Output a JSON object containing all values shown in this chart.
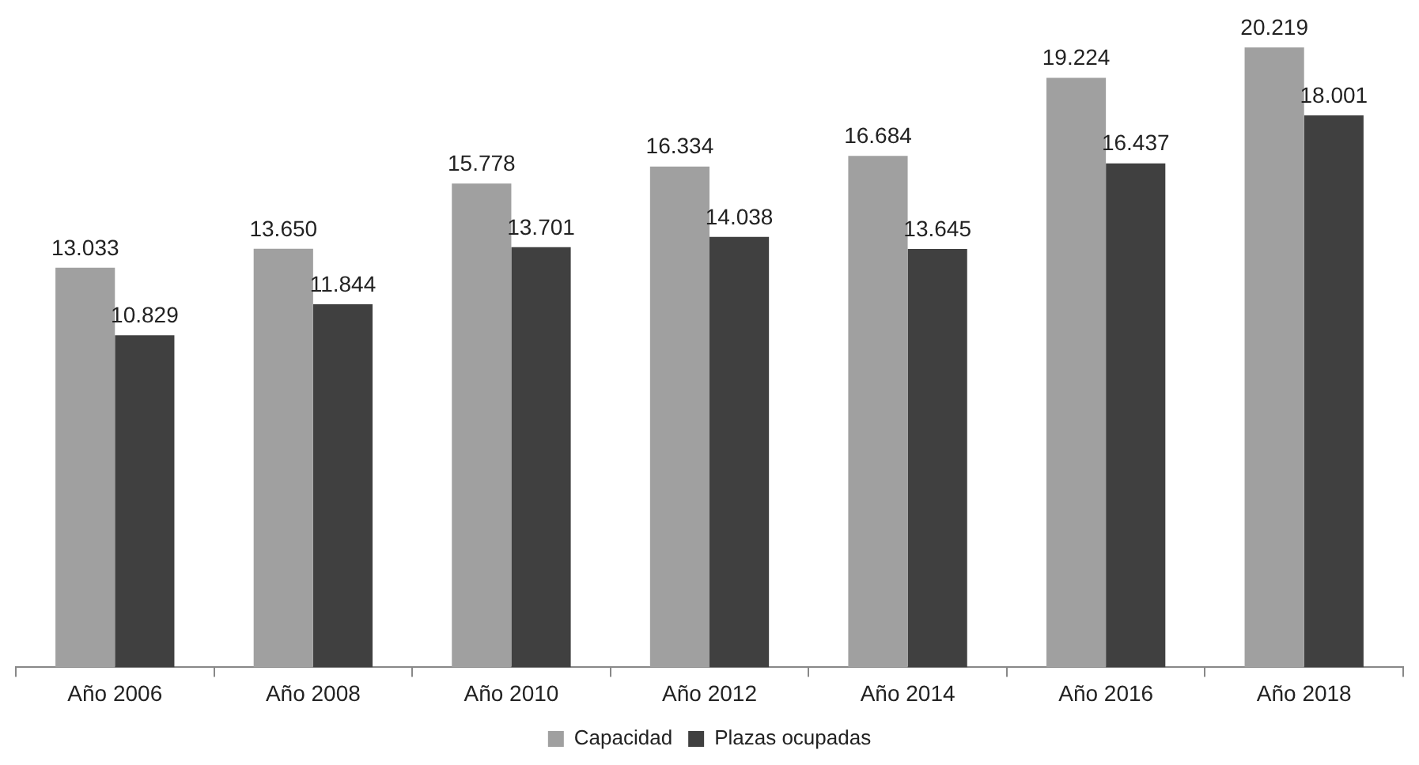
{
  "chart_data": {
    "type": "bar",
    "categories": [
      "Año 2006",
      "Año 2008",
      "Año 2010",
      "Año 2012",
      "Año 2014",
      "Año 2016",
      "Año 2018"
    ],
    "series": [
      {
        "name": "Capacidad",
        "color": "#a0a0a0",
        "values": [
          13033,
          13650,
          15778,
          16334,
          16684,
          19224,
          20219
        ],
        "value_labels": [
          "13.033",
          "13.650",
          "15.778",
          "16.334",
          "16.684",
          "19.224",
          "20.219"
        ]
      },
      {
        "name": "Plazas ocupadas",
        "color": "#404040",
        "values": [
          10829,
          11844,
          13701,
          14038,
          13645,
          16437,
          18001
        ],
        "value_labels": [
          "10.829",
          "11.844",
          "13.701",
          "14.038",
          "13.645",
          "16.437",
          "18.001"
        ]
      }
    ],
    "legend": "bottom",
    "grid": false
  }
}
